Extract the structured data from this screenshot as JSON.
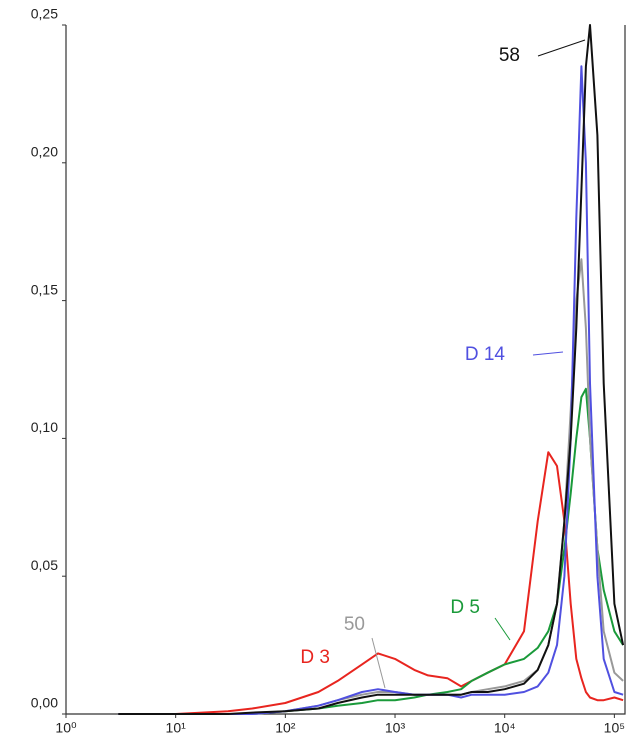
{
  "chart_data": {
    "type": "line",
    "x": [
      3,
      10,
      30,
      50,
      100,
      200,
      300,
      500,
      700,
      1000,
      1500,
      2000,
      3000,
      4000,
      5000,
      7000,
      10000,
      15000,
      20000,
      25000,
      30000,
      35000,
      40000,
      45000,
      50000,
      55000,
      60000,
      70000,
      80000,
      100000,
      120000
    ],
    "xlog": true,
    "xlim": [
      1,
      125000
    ],
    "xticks": [
      {
        "value": 1,
        "label": "10⁰"
      },
      {
        "value": 10,
        "label": "10¹"
      },
      {
        "value": 100,
        "label": "10²"
      },
      {
        "value": 1000,
        "label": "10³"
      },
      {
        "value": 10000,
        "label": "10⁴"
      },
      {
        "value": 100000,
        "label": "10⁵"
      }
    ],
    "ylim": [
      0,
      0.25
    ],
    "yticks": [
      {
        "value": 0,
        "label": "0,00"
      },
      {
        "value": 0.05,
        "label": "0,05"
      },
      {
        "value": 0.1,
        "label": "0,10"
      },
      {
        "value": 0.15,
        "label": "0,15"
      },
      {
        "value": 0.2,
        "label": "0,20"
      },
      {
        "value": 0.25,
        "label": "0,25"
      }
    ],
    "grid": false,
    "series": [
      {
        "name": "D 3",
        "color": "#e8251f",
        "values": [
          0,
          0,
          0.001,
          0.002,
          0.004,
          0.008,
          0.012,
          0.018,
          0.022,
          0.02,
          0.016,
          0.014,
          0.013,
          0.01,
          0.012,
          0.015,
          0.018,
          0.03,
          0.07,
          0.095,
          0.09,
          0.07,
          0.04,
          0.02,
          0.013,
          0.008,
          0.006,
          0.005,
          0.005,
          0.006,
          0.005
        ]
      },
      {
        "name": "D 5",
        "color": "#1a9a3a",
        "values": [
          0,
          0,
          0,
          0,
          0.001,
          0.002,
          0.003,
          0.004,
          0.005,
          0.005,
          0.006,
          0.007,
          0.008,
          0.009,
          0.012,
          0.015,
          0.018,
          0.02,
          0.024,
          0.03,
          0.04,
          0.06,
          0.08,
          0.1,
          0.115,
          0.118,
          0.1,
          0.06,
          0.045,
          0.03,
          0.025
        ]
      },
      {
        "name": "50",
        "color": "#999999",
        "values": [
          0,
          0,
          0,
          0,
          0.001,
          0.003,
          0.005,
          0.007,
          0.008,
          0.008,
          0.007,
          0.007,
          0.007,
          0.007,
          0.008,
          0.009,
          0.01,
          0.012,
          0.016,
          0.025,
          0.04,
          0.07,
          0.11,
          0.15,
          0.165,
          0.14,
          0.1,
          0.06,
          0.03,
          0.015,
          0.012
        ]
      },
      {
        "name": "D 14",
        "color": "#5050e0",
        "values": [
          0,
          0,
          0,
          0,
          0.001,
          0.003,
          0.005,
          0.008,
          0.009,
          0.008,
          0.007,
          0.007,
          0.007,
          0.006,
          0.007,
          0.007,
          0.007,
          0.008,
          0.01,
          0.015,
          0.025,
          0.05,
          0.1,
          0.18,
          0.235,
          0.2,
          0.12,
          0.05,
          0.02,
          0.008,
          0.007
        ]
      },
      {
        "name": "58",
        "color": "#111111",
        "values": [
          0,
          0,
          0,
          0.0005,
          0.001,
          0.002,
          0.004,
          0.006,
          0.007,
          0.007,
          0.007,
          0.007,
          0.007,
          0.007,
          0.008,
          0.008,
          0.009,
          0.011,
          0.016,
          0.025,
          0.04,
          0.07,
          0.1,
          0.14,
          0.19,
          0.235,
          0.25,
          0.21,
          0.12,
          0.04,
          0.025
        ]
      }
    ]
  }
}
